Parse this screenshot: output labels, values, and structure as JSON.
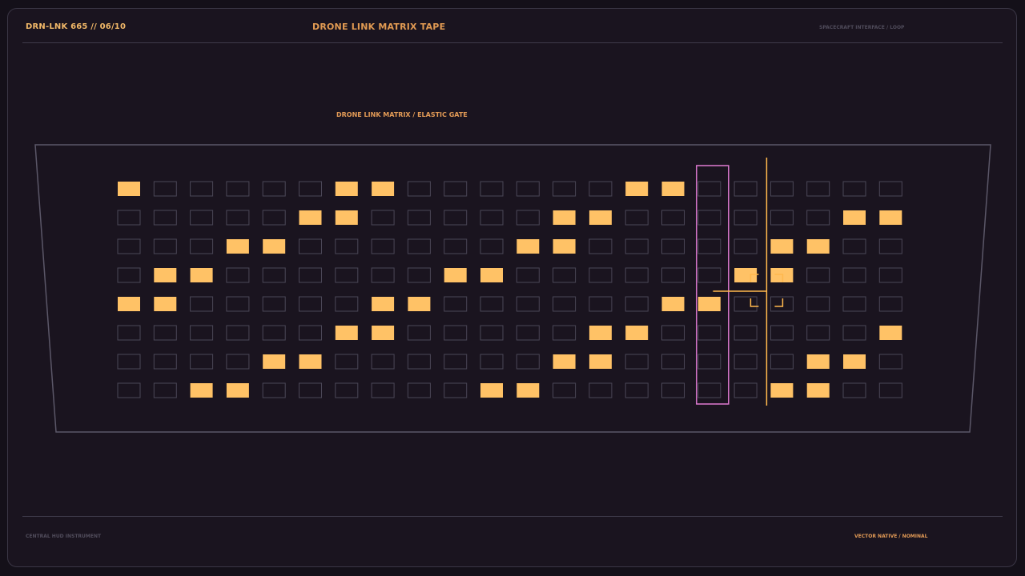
{
  "header": {
    "device_id": "DRN-LNK 665 // 06/10",
    "title": "DRONE LINK MATRIX TAPE",
    "context": "SPACECRAFT INTERFACE / LOOP"
  },
  "matrix": {
    "label": "DRONE LINK MATRIX / ELASTIC GATE",
    "columns": 22,
    "rows": [
      [
        1,
        0,
        0,
        0,
        0,
        0,
        1,
        1,
        0,
        0,
        0,
        0,
        0,
        0,
        1,
        1,
        0,
        0,
        0,
        0,
        0,
        0
      ],
      [
        0,
        0,
        0,
        0,
        0,
        1,
        1,
        0,
        0,
        0,
        0,
        0,
        1,
        1,
        0,
        0,
        0,
        0,
        0,
        0,
        1,
        1
      ],
      [
        0,
        0,
        0,
        1,
        1,
        0,
        0,
        0,
        0,
        0,
        0,
        1,
        1,
        0,
        0,
        0,
        0,
        0,
        1,
        1,
        0,
        0
      ],
      [
        0,
        1,
        1,
        0,
        0,
        0,
        0,
        0,
        0,
        1,
        1,
        0,
        0,
        0,
        0,
        0,
        0,
        1,
        1,
        0,
        0,
        0
      ],
      [
        1,
        1,
        0,
        0,
        0,
        0,
        0,
        1,
        1,
        0,
        0,
        0,
        0,
        0,
        0,
        1,
        1,
        0,
        0,
        0,
        0,
        0
      ],
      [
        0,
        0,
        0,
        0,
        0,
        0,
        1,
        1,
        0,
        0,
        0,
        0,
        0,
        1,
        1,
        0,
        0,
        0,
        0,
        0,
        0,
        1
      ],
      [
        0,
        0,
        0,
        0,
        1,
        1,
        0,
        0,
        0,
        0,
        0,
        0,
        1,
        1,
        0,
        0,
        0,
        0,
        0,
        1,
        1,
        0
      ],
      [
        0,
        0,
        1,
        1,
        0,
        0,
        0,
        0,
        0,
        0,
        1,
        1,
        0,
        0,
        0,
        0,
        0,
        0,
        1,
        1,
        0,
        0
      ]
    ],
    "gate_column": 16,
    "playhead_column": 18,
    "colors": {
      "active": "#ffc266",
      "inactive_stroke": "#4b4757",
      "gate": "#e07bd2",
      "playhead": "#ffb84d",
      "panel_stroke": "#5b5768"
    }
  },
  "footer": {
    "left": "CENTRAL HUD INSTRUMENT",
    "right": "VECTOR NATIVE / NOMINAL"
  }
}
